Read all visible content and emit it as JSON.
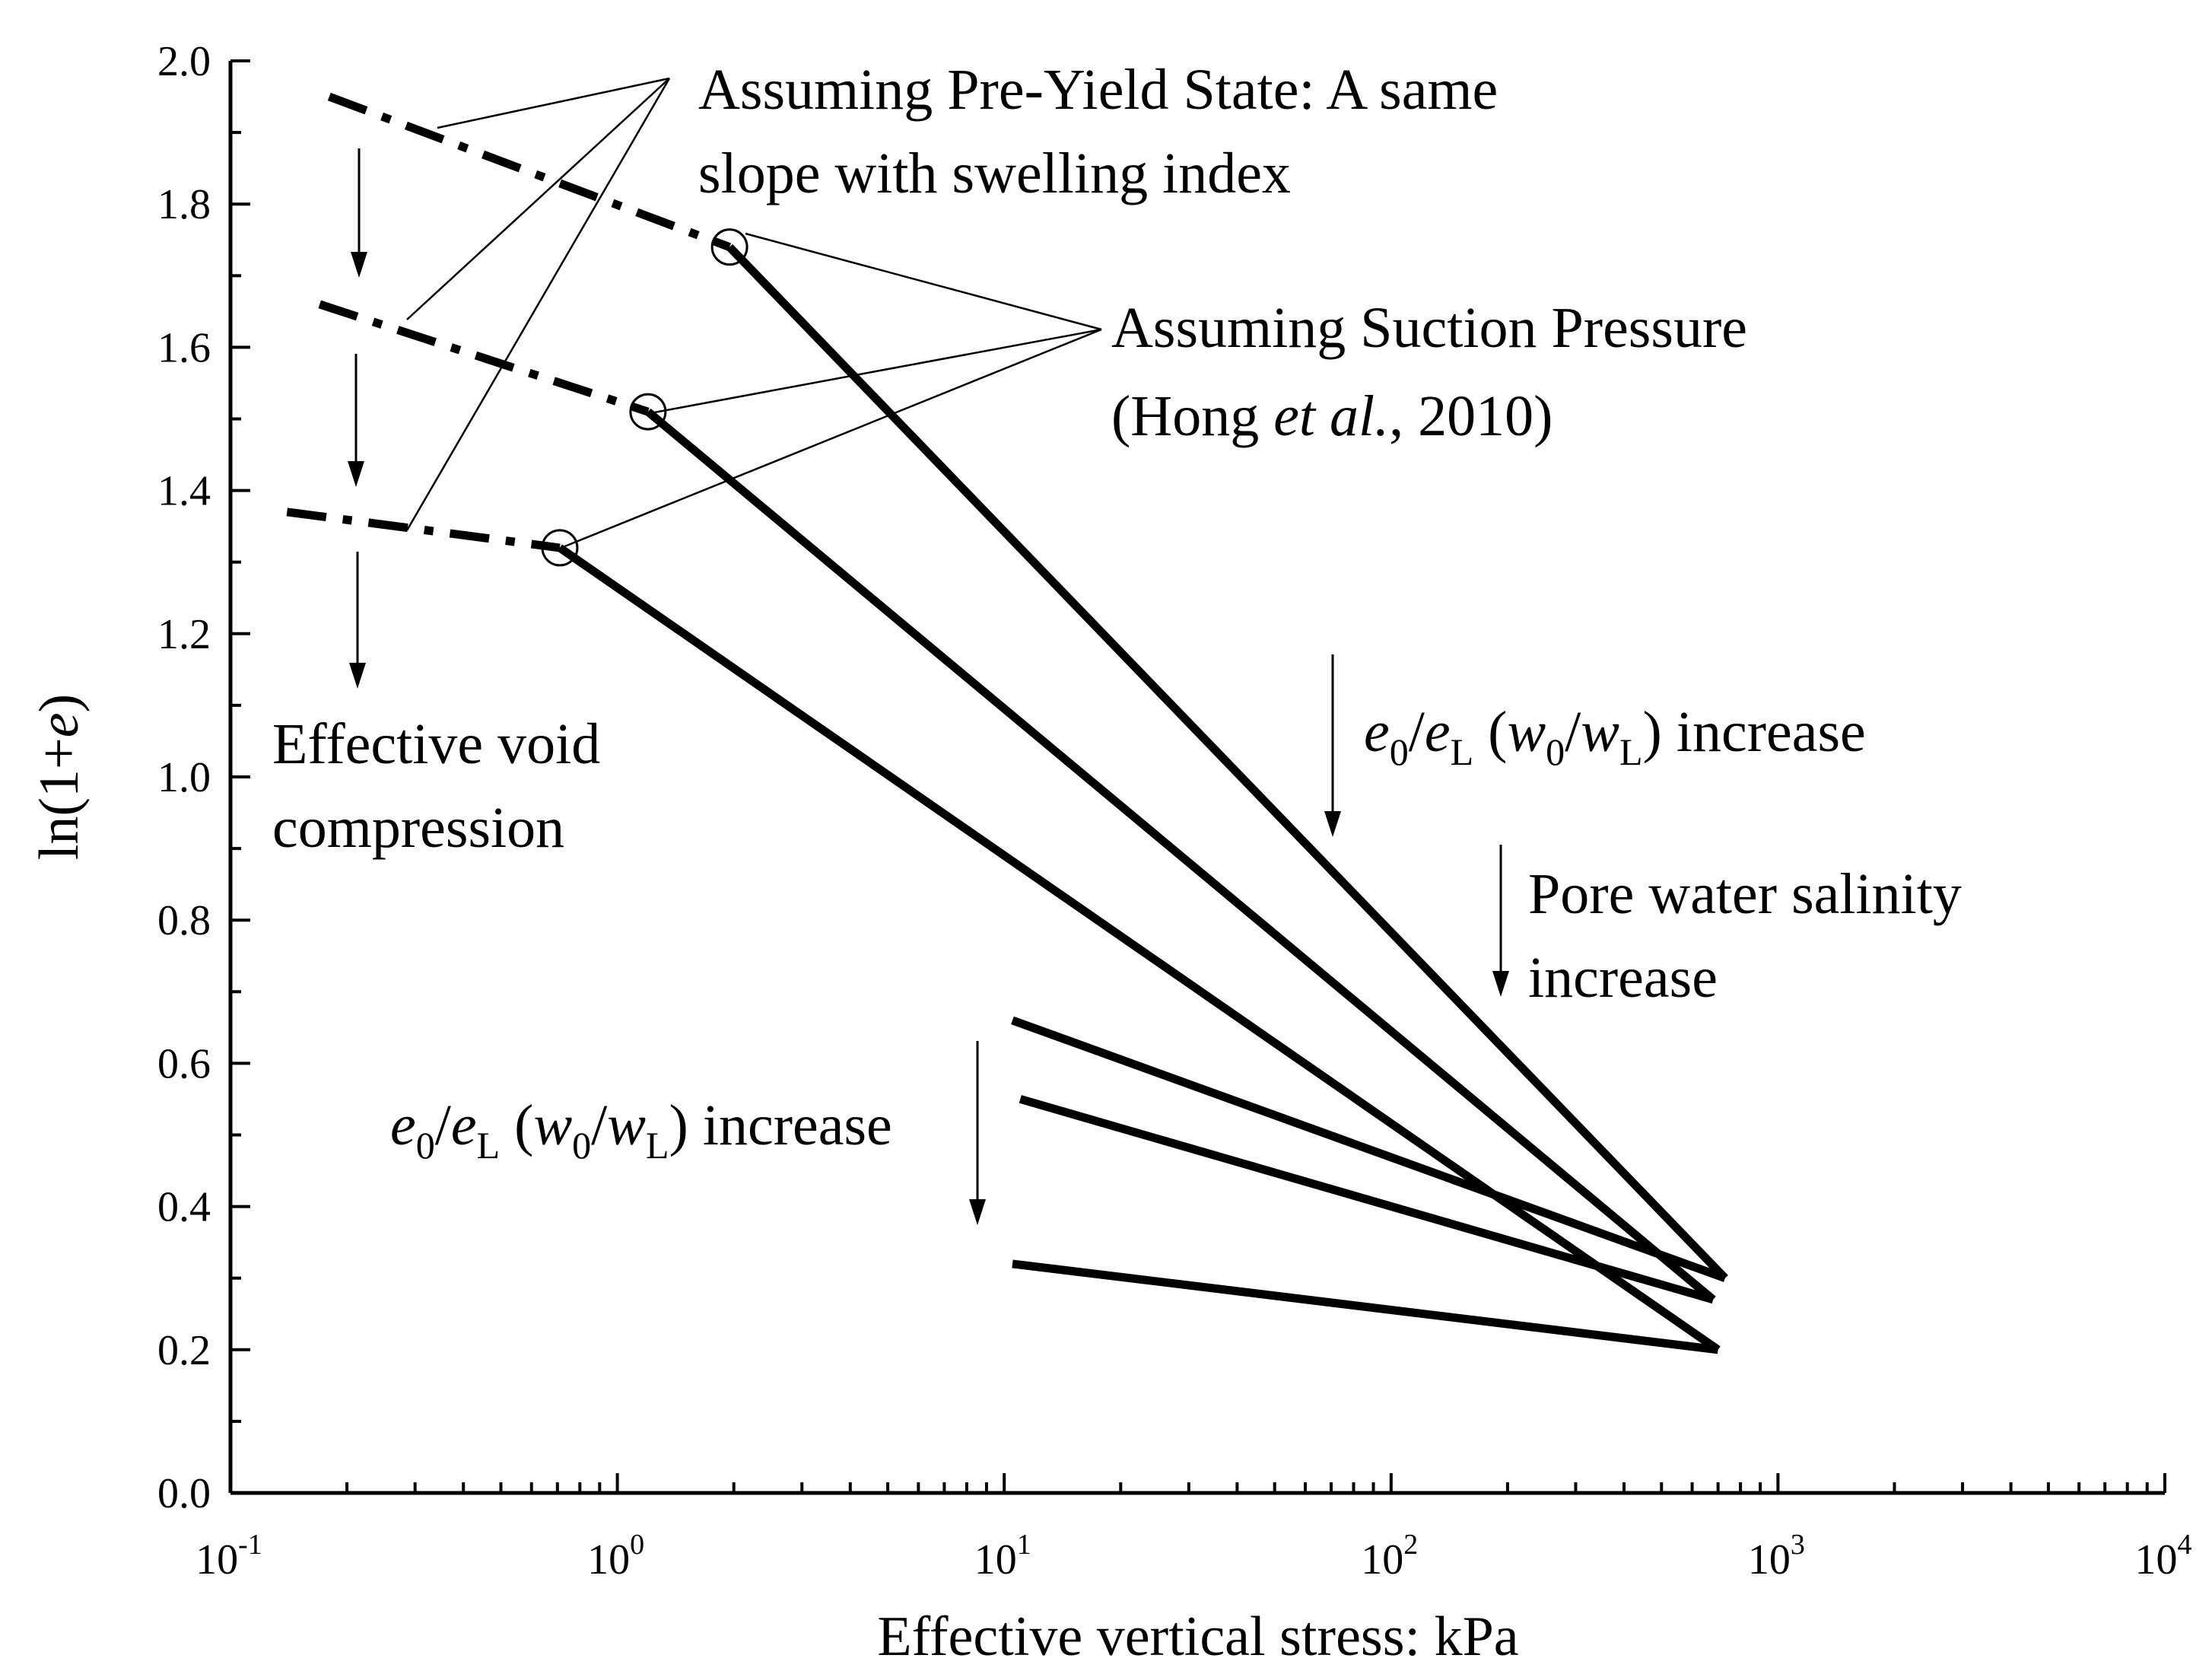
{
  "chart_data": {
    "type": "line",
    "xscale": "log",
    "xlim": [
      0.1,
      10000
    ],
    "ylim": [
      0.0,
      2.0
    ],
    "xlabel": "Effective vertical stress: kPa",
    "ylabel_main": "ln(1+",
    "ylabel_var": "e",
    "ylabel_close": ")",
    "x_ticks": [
      {
        "base": "10",
        "exp": "-1",
        "value": 0.1
      },
      {
        "base": "10",
        "exp": "0",
        "value": 1
      },
      {
        "base": "10",
        "exp": "1",
        "value": 10
      },
      {
        "base": "10",
        "exp": "2",
        "value": 100
      },
      {
        "base": "10",
        "exp": "3",
        "value": 1000
      },
      {
        "base": "10",
        "exp": "4",
        "value": 10000
      }
    ],
    "y_ticks": [
      "0.0",
      "0.2",
      "0.4",
      "0.6",
      "0.8",
      "1.0",
      "1.2",
      "1.4",
      "1.6",
      "1.8",
      "2.0"
    ],
    "grid": false,
    "series": [
      {
        "style": "dash-dot",
        "x": [
          0.18,
          1.95
        ],
        "y": [
          1.95,
          1.74
        ]
      },
      {
        "style": "dash-dot",
        "x": [
          0.17,
          1.2
        ],
        "y": [
          1.66,
          1.51
        ]
      },
      {
        "style": "dash-dot",
        "x": [
          0.14,
          0.71
        ],
        "y": [
          1.37,
          1.32
        ]
      },
      {
        "style": "solid",
        "x": [
          1.95,
          730
        ],
        "y": [
          1.74,
          0.3
        ]
      },
      {
        "style": "solid",
        "x": [
          1.2,
          680
        ],
        "y": [
          1.51,
          0.27
        ]
      },
      {
        "style": "solid",
        "x": [
          0.71,
          700
        ],
        "y": [
          1.32,
          0.2
        ]
      },
      {
        "style": "solid",
        "x": [
          10.5,
          730
        ],
        "y": [
          0.66,
          0.3
        ]
      },
      {
        "style": "solid",
        "x": [
          11,
          680
        ],
        "y": [
          0.55,
          0.27
        ]
      },
      {
        "style": "solid",
        "x": [
          10.5,
          700
        ],
        "y": [
          0.32,
          0.2
        ]
      }
    ],
    "markers": [
      {
        "shape": "open-circle",
        "x": 1.95,
        "y": 1.74
      },
      {
        "shape": "open-circle",
        "x": 1.2,
        "y": 1.51
      },
      {
        "shape": "open-circle",
        "x": 0.71,
        "y": 1.32
      }
    ],
    "annotations": {
      "pre_yield": {
        "line1": "Assuming Pre-Yield State: A same",
        "line2": "slope with swelling index"
      },
      "suction": {
        "line1": "Assuming Suction Pressure",
        "line2_open": "(Hong ",
        "line2_italic": "et al.",
        "line2_close": ", 2010)"
      },
      "effective_void": {
        "line1": "Effective void",
        "line2": "compression"
      },
      "pore_water": {
        "line1": "Pore water salinity",
        "line2": "increase"
      },
      "ratio_increase": {
        "e": "e",
        "sub0": "0",
        "slash": "/",
        "sub_L": "L",
        "paren_open": " (",
        "w": "w",
        "paren_close": ")",
        "word": " increase"
      }
    }
  }
}
